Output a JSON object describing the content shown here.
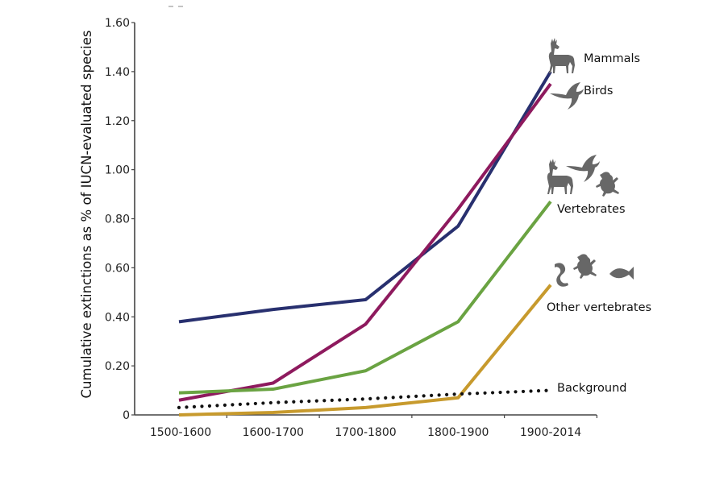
{
  "chart_data": {
    "type": "line",
    "title": "",
    "xlabel": "",
    "ylabel": "Cumulative extinctions as % of IUCN-evaluated species",
    "ylim": [
      0,
      1.6
    ],
    "yticks": [
      0,
      0.2,
      0.4,
      0.6,
      0.8,
      1.0,
      1.2,
      1.4,
      1.6
    ],
    "ytick_labels": [
      "0",
      "0.20",
      "0.40",
      "0.60",
      "0.80",
      "1.00",
      "1.20",
      "1.40",
      "1.60"
    ],
    "categories": [
      "1500-1600",
      "1600-1700",
      "1700-1800",
      "1800-1900",
      "1900-2014"
    ],
    "grid": false,
    "legend": "direct labels at line ends (right)",
    "series": [
      {
        "name": "Mammals",
        "color": "#28306f",
        "style": "solid",
        "icons": [
          "deer-icon"
        ],
        "values": [
          0.38,
          0.43,
          0.47,
          0.77,
          1.4
        ]
      },
      {
        "name": "Birds",
        "color": "#8e1a5e",
        "style": "solid",
        "icons": [
          "bird-icon"
        ],
        "values": [
          0.06,
          0.13,
          0.37,
          0.84,
          1.35
        ]
      },
      {
        "name": "Vertebrates",
        "color": "#6aa342",
        "style": "solid",
        "icons": [
          "deer-icon",
          "bird-icon",
          "frog-icon"
        ],
        "values": [
          0.09,
          0.105,
          0.18,
          0.38,
          0.87
        ]
      },
      {
        "name": "Other vertebrates",
        "color": "#c79a2d",
        "style": "solid",
        "icons": [
          "snake-icon",
          "frog-icon",
          "fish-icon"
        ],
        "values": [
          0.0,
          0.01,
          0.03,
          0.07,
          0.53
        ]
      },
      {
        "name": "Background",
        "color": "#111111",
        "style": "dotted",
        "icons": [],
        "values": [
          0.03,
          0.05,
          0.065,
          0.085,
          0.1
        ]
      }
    ]
  }
}
